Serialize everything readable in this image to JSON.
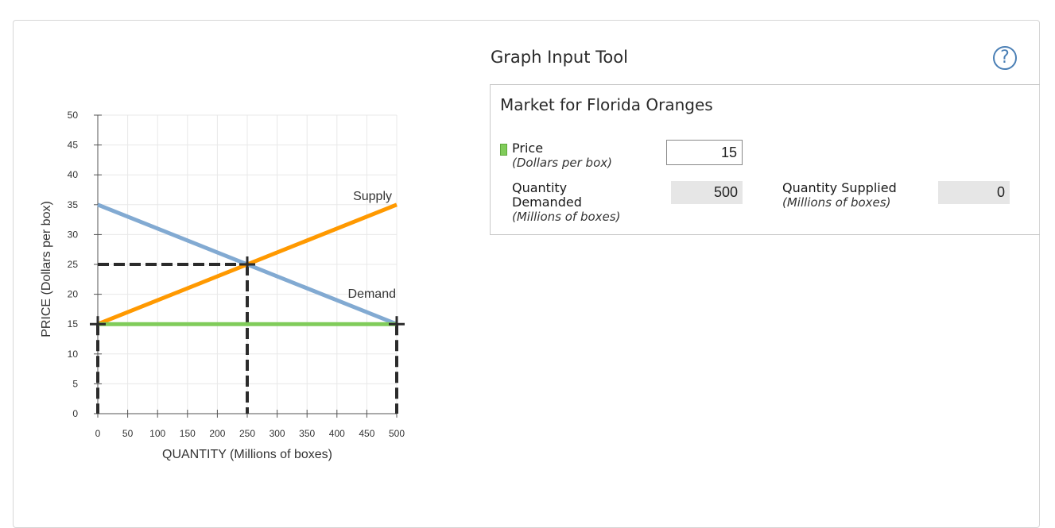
{
  "tool": {
    "title": "Graph Input Tool",
    "help_label": "?"
  },
  "market": {
    "title": "Market for Florida Oranges",
    "price_label": "Price",
    "price_unit": "(Dollars per box)",
    "price_value": "15",
    "qd_label_1": "Quantity",
    "qd_label_2": "Demanded",
    "qd_unit": "(Millions of boxes)",
    "qd_value": "500",
    "qs_label": "Quantity Supplied",
    "qs_unit": "(Millions of boxes)",
    "qs_value": "0"
  },
  "colors": {
    "demand": "#82aad2",
    "supply": "#ff9900",
    "price_line": "#80cc5a",
    "dashed": "#2b2b2b",
    "grid": "#e8e8e8"
  },
  "chart_data": {
    "type": "line",
    "xlabel": "QUANTITY (Millions of boxes)",
    "ylabel": "PRICE (Dollars per box)",
    "xlim": [
      0,
      500
    ],
    "ylim": [
      0,
      50
    ],
    "xticks": [
      0,
      50,
      100,
      150,
      200,
      250,
      300,
      350,
      400,
      450,
      500
    ],
    "yticks": [
      0,
      5,
      10,
      15,
      20,
      25,
      30,
      35,
      40,
      45,
      50
    ],
    "grid": true,
    "series": [
      {
        "name": "Demand",
        "x": [
          0,
          500
        ],
        "y": [
          35,
          15
        ]
      },
      {
        "name": "Supply",
        "x": [
          0,
          500
        ],
        "y": [
          15,
          35
        ]
      }
    ],
    "price_line": {
      "price": 15,
      "x": [
        0,
        500
      ]
    },
    "equilibrium": {
      "x": 250,
      "y": 25
    },
    "markers": [
      {
        "x": 0,
        "y": 15
      },
      {
        "x": 500,
        "y": 15
      },
      {
        "x": 250,
        "y": 25
      }
    ]
  }
}
